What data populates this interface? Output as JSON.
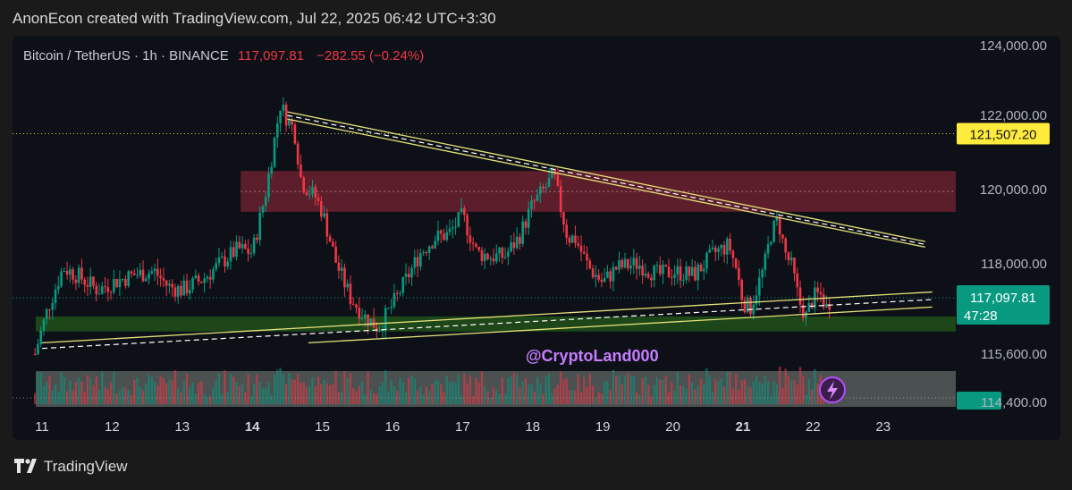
{
  "header": {
    "attribution": "AnonEcon created with TradingView.com, Jul 22, 2025 06:42 UTC+3:30"
  },
  "legend": {
    "symbol": "Bitcoin / TetherUS · 1h · BINANCE",
    "last_price": "117,097.81",
    "change": "−282.55 (−0.24%)"
  },
  "watermark": "@CryptoLand000",
  "footer": {
    "brand": "TradingView"
  },
  "price_tags": {
    "level": {
      "text": "121,507.20",
      "bg": "#ffeb3b",
      "fg": "#131722"
    },
    "last": {
      "text": "117,097.81",
      "countdown": "47:28",
      "bg": "#089981",
      "fg": "#ffffff"
    },
    "bottom": {
      "text": "114,400.00",
      "bg": "#089981"
    }
  },
  "colors": {
    "up": "#089981",
    "down": "#f23645",
    "resistance_zone": "#7a2432",
    "support_zone": "#1f4d1a",
    "volume_zone": "#8a8f8a",
    "trendline": "#e6e07a",
    "dashed": "#ffffff",
    "level_line": "#d8d24a",
    "last_line": "#089981",
    "watermark": "#c77dff"
  },
  "chart_data": {
    "type": "candlestick",
    "timeframe": "1h",
    "exchange": "BINANCE",
    "y_scale": "piecewise (non-linear axis labels as printed)",
    "y_ticks": [
      {
        "label": "124,000.00",
        "value": 124000
      },
      {
        "label": "122,000.00",
        "value": 122000
      },
      {
        "label": "120,000.00",
        "value": 120000
      },
      {
        "label": "118,000.00",
        "value": 118000
      },
      {
        "label": "115,600.00",
        "value": 115600
      },
      {
        "label": "114,400.00",
        "value": 114400
      }
    ],
    "x_ticks": [
      {
        "label": "11",
        "day": 11,
        "bold": false
      },
      {
        "label": "12",
        "day": 12,
        "bold": false
      },
      {
        "label": "13",
        "day": 13,
        "bold": false
      },
      {
        "label": "14",
        "day": 14,
        "bold": true
      },
      {
        "label": "15",
        "day": 15,
        "bold": false
      },
      {
        "label": "16",
        "day": 16,
        "bold": false
      },
      {
        "label": "17",
        "day": 17,
        "bold": false
      },
      {
        "label": "18",
        "day": 18,
        "bold": false
      },
      {
        "label": "19",
        "day": 19,
        "bold": false
      },
      {
        "label": "20",
        "day": 20,
        "bold": false
      },
      {
        "label": "21",
        "day": 21,
        "bold": true
      },
      {
        "label": "22",
        "day": 22,
        "bold": false
      },
      {
        "label": "23",
        "day": 23,
        "bold": false
      }
    ],
    "price_path": [
      [
        10.9,
        115600
      ],
      [
        11.0,
        116300
      ],
      [
        11.1,
        116900
      ],
      [
        11.3,
        117900
      ],
      [
        11.5,
        117700
      ],
      [
        11.8,
        117300
      ],
      [
        12.0,
        117500
      ],
      [
        12.3,
        117700
      ],
      [
        12.6,
        117800
      ],
      [
        12.8,
        117400
      ],
      [
        13.0,
        117300
      ],
      [
        13.3,
        117600
      ],
      [
        13.6,
        118100
      ],
      [
        13.8,
        118400
      ],
      [
        14.0,
        118300
      ],
      [
        14.2,
        120000
      ],
      [
        14.4,
        122300
      ],
      [
        14.5,
        121900
      ],
      [
        14.6,
        121600
      ],
      [
        14.7,
        120200
      ],
      [
        14.9,
        119800
      ],
      [
        15.0,
        119400
      ],
      [
        15.2,
        118000
      ],
      [
        15.4,
        117100
      ],
      [
        15.6,
        116600
      ],
      [
        15.8,
        116300
      ],
      [
        16.0,
        116900
      ],
      [
        16.2,
        117600
      ],
      [
        16.4,
        118300
      ],
      [
        16.6,
        118700
      ],
      [
        16.8,
        118800
      ],
      [
        17.0,
        119300
      ],
      [
        17.2,
        118300
      ],
      [
        17.4,
        118200
      ],
      [
        17.6,
        118200
      ],
      [
        17.8,
        118700
      ],
      [
        18.0,
        119600
      ],
      [
        18.2,
        120100
      ],
      [
        18.3,
        120400
      ],
      [
        18.4,
        119500
      ],
      [
        18.5,
        118700
      ],
      [
        18.6,
        118700
      ],
      [
        18.8,
        117900
      ],
      [
        19.0,
        117500
      ],
      [
        19.2,
        117900
      ],
      [
        19.5,
        118000
      ],
      [
        19.8,
        117700
      ],
      [
        20.0,
        117800
      ],
      [
        20.3,
        117700
      ],
      [
        20.6,
        118300
      ],
      [
        20.8,
        118500
      ],
      [
        20.9,
        117900
      ],
      [
        21.0,
        117000
      ],
      [
        21.1,
        116800
      ],
      [
        21.3,
        117900
      ],
      [
        21.4,
        118800
      ],
      [
        21.5,
        119200
      ],
      [
        21.6,
        118300
      ],
      [
        21.7,
        117900
      ],
      [
        21.8,
        117000
      ],
      [
        21.9,
        116600
      ],
      [
        22.0,
        117100
      ],
      [
        22.1,
        117200
      ],
      [
        22.2,
        116800
      ],
      [
        22.25,
        117097.81
      ]
    ],
    "resistance_zone": {
      "from": 119400,
      "to": 120500
    },
    "support_zone": {
      "from": 116200,
      "to": 116600
    },
    "trendlines": [
      {
        "kind": "upper",
        "start": [
          14.5,
          122100
        ],
        "end": [
          23.6,
          118600
        ]
      },
      {
        "kind": "upper",
        "start": [
          14.5,
          121900
        ],
        "end": [
          23.6,
          118450
        ]
      },
      {
        "kind": "lower",
        "start": [
          11.0,
          115900
        ],
        "end": [
          23.7,
          117250
        ]
      },
      {
        "kind": "lower",
        "start": [
          14.8,
          115900
        ],
        "end": [
          23.7,
          116850
        ]
      }
    ],
    "dashed_lines": [
      {
        "start": [
          14.5,
          122000
        ],
        "end": [
          23.6,
          118520
        ]
      },
      {
        "start": [
          11.0,
          115750
        ],
        "end": [
          23.7,
          117050
        ]
      }
    ],
    "horizontal_levels": [
      121507.2
    ],
    "last_price": 117097.81
  }
}
